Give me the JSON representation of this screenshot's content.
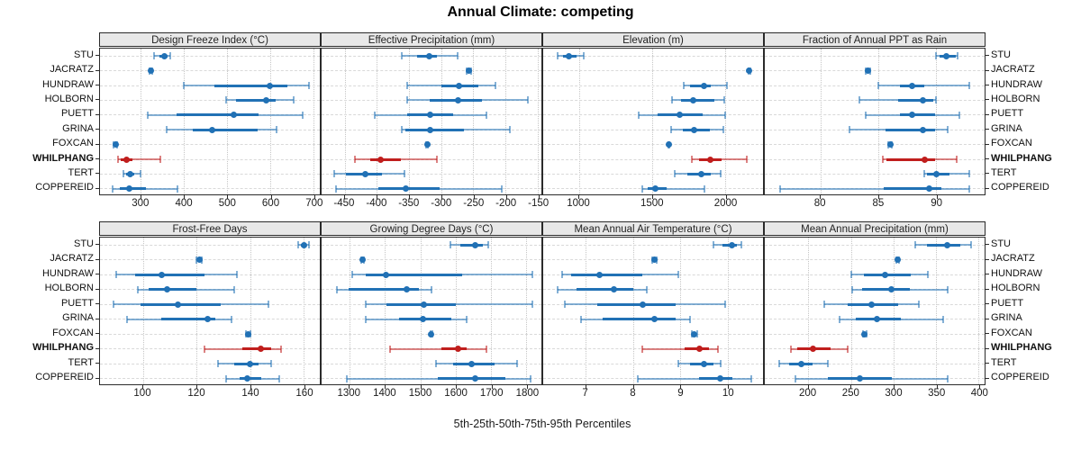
{
  "title": "Annual Climate: competing",
  "footer_xlabel": "5th-25th-50th-75th-95th Percentiles",
  "stations": [
    "STU",
    "JACRATZ",
    "HUNDRAW",
    "HOLBORN",
    "PUETT",
    "GRINA",
    "FOXCAN",
    "WHILPHANG",
    "TERT",
    "COPPEREID"
  ],
  "highlight_station": "WHILPHANG",
  "colors": {
    "blue": "#2171b5",
    "red": "#c01e1d",
    "grid": "#c6c6c6",
    "strip_bg": "#e8e8e8",
    "border": "#2b2b2b",
    "text": "#111111"
  },
  "chart_data": {
    "type": "scatter",
    "subtype": "5th-25th-50th-75th-95th percentile interval dotplot (trellis, 2 rows x 4 cols)",
    "title": "Annual Climate: competing",
    "xlabel": "5th-25th-50th-75th-95th Percentiles",
    "percentiles": [
      5,
      25,
      50,
      75,
      95
    ],
    "layout": {
      "rows": 2,
      "cols": 4,
      "legend": "none",
      "grid": "dotted vertical at ticks, dashed horizontal per station"
    },
    "panels": [
      {
        "title": "Design Freeze Index (°C)",
        "row": 0,
        "col": 0,
        "xlim": [
          205,
          715
        ],
        "ticks": [
          300,
          400,
          500,
          600,
          700
        ],
        "values": {
          "STU": [
            330,
            342,
            355,
            362,
            368
          ],
          "JACRATZ": [
            319,
            321,
            323,
            325,
            327
          ],
          "HUNDRAW": [
            400,
            470,
            600,
            640,
            690
          ],
          "HOLBORN": [
            497,
            520,
            590,
            612,
            655
          ],
          "PUETT": [
            315,
            382,
            516,
            573,
            676
          ],
          "GRINA": [
            359,
            420,
            466,
            570,
            614
          ],
          "FOXCAN": [
            237,
            239,
            241,
            243,
            245
          ],
          "WHILPHANG": [
            246,
            254,
            267,
            280,
            345
          ],
          "TERT": [
            260,
            266,
            275,
            285,
            299
          ],
          "COPPEREID": [
            234,
            250,
            273,
            312,
            385
          ]
        }
      },
      {
        "title": "Effective Precipitation (mm)",
        "row": 0,
        "col": 1,
        "xlim": [
          -486,
          -144
        ],
        "ticks": [
          -450,
          -400,
          -350,
          -300,
          -250,
          -200,
          -150
        ],
        "values": {
          "STU": [
            -361,
            -337,
            -318,
            -306,
            -274
          ],
          "JACRATZ": [
            -261,
            -259,
            -257,
            -255,
            -253
          ],
          "HUNDRAW": [
            -353,
            -300,
            -272,
            -242,
            -215
          ],
          "HOLBORN": [
            -353,
            -318,
            -273,
            -237,
            -165
          ],
          "PUETT": [
            -404,
            -353,
            -317,
            -281,
            -230
          ],
          "GRINA": [
            -361,
            -355,
            -317,
            -264,
            -193
          ],
          "FOXCAN": [
            -324,
            -323,
            -322,
            -321,
            -320
          ],
          "WHILPHANG": [
            -434,
            -411,
            -394,
            -362,
            -307
          ],
          "TERT": [
            -466,
            -448,
            -418,
            -392,
            -357
          ],
          "COPPEREID": [
            -464,
            -397,
            -355,
            -302,
            -206
          ]
        }
      },
      {
        "title": "Elevation (m)",
        "row": 0,
        "col": 2,
        "xlim": [
          755,
          2260
        ],
        "ticks": [
          1000,
          1500,
          2000
        ],
        "values": {
          "STU": [
            852,
            893,
            933,
            984,
            1030
          ],
          "JACRATZ": [
            2160,
            2163,
            2166,
            2169,
            2172
          ],
          "HUNDRAW": [
            1719,
            1763,
            1854,
            1905,
            2012
          ],
          "HOLBORN": [
            1638,
            1700,
            1779,
            1930,
            1996
          ],
          "PUETT": [
            1409,
            1540,
            1692,
            1844,
            2002
          ],
          "GRINA": [
            1632,
            1712,
            1789,
            1895,
            1986
          ],
          "FOXCAN": [
            1612,
            1614,
            1616,
            1618,
            1620
          ],
          "WHILPHANG": [
            1773,
            1824,
            1901,
            1976,
            2148
          ],
          "TERT": [
            1658,
            1743,
            1840,
            1905,
            1971
          ],
          "COPPEREID": [
            1435,
            1470,
            1520,
            1601,
            1858
          ]
        }
      },
      {
        "title": "Fraction of Annual PPT as Rain",
        "row": 0,
        "col": 3,
        "xlim": [
          75.2,
          94.2
        ],
        "ticks": [
          80,
          85,
          90
        ],
        "values": {
          "STU": [
            90.0,
            90.3,
            90.9,
            91.7,
            91.9
          ],
          "JACRATZ": [
            83.9,
            84.0,
            84.1,
            84.2,
            84.3
          ],
          "HUNDRAW": [
            85.0,
            86.9,
            87.9,
            89.0,
            92.9
          ],
          "HOLBORN": [
            83.4,
            86.7,
            88.9,
            89.8,
            90.0
          ],
          "PUETT": [
            83.9,
            86.9,
            87.9,
            89.9,
            92.0
          ],
          "GRINA": [
            82.5,
            85.6,
            88.9,
            89.9,
            91.0
          ],
          "FOXCAN": [
            85.9,
            86.0,
            86.05,
            86.1,
            86.2
          ],
          "WHILPHANG": [
            85.4,
            85.7,
            89.0,
            89.9,
            91.8
          ],
          "TERT": [
            89.0,
            89.2,
            90.0,
            91.2,
            92.9
          ],
          "COPPEREID": [
            76.5,
            85.5,
            89.4,
            90.5,
            92.9
          ]
        }
      },
      {
        "title": "Frost-Free Days",
        "row": 1,
        "col": 0,
        "xlim": [
          84,
          166
        ],
        "ticks": [
          100,
          120,
          140,
          160
        ],
        "values": {
          "STU": [
            158,
            159,
            160,
            161,
            162
          ],
          "JACRATZ": [
            120,
            120.5,
            121,
            121.5,
            122
          ],
          "HUNDRAW": [
            90,
            97,
            107,
            123,
            135
          ],
          "HOLBORN": [
            98,
            102,
            109,
            120,
            134
          ],
          "PUETT": [
            89,
            99,
            113,
            129,
            147
          ],
          "GRINA": [
            94,
            107,
            124,
            127,
            133
          ],
          "FOXCAN": [
            138.5,
            139,
            139.2,
            139.5,
            140
          ],
          "WHILPHANG": [
            123,
            137,
            144,
            148,
            151.5
          ],
          "TERT": [
            128,
            134,
            140,
            143,
            148
          ],
          "COPPEREID": [
            131,
            136,
            139,
            144,
            151
          ]
        }
      },
      {
        "title": "Growing Degree Days (°C)",
        "row": 1,
        "col": 1,
        "xlim": [
          1221,
          1842
        ],
        "ticks": [
          1300,
          1400,
          1500,
          1600,
          1700,
          1800
        ],
        "values": {
          "STU": [
            1584,
            1613,
            1654,
            1676,
            1691
          ],
          "JACRATZ": [
            1333,
            1335,
            1337,
            1339,
            1341
          ],
          "HUNDRAW": [
            1307,
            1346,
            1402,
            1619,
            1816
          ],
          "HOLBORN": [
            1263,
            1298,
            1462,
            1496,
            1531
          ],
          "PUETT": [
            1345,
            1403,
            1511,
            1601,
            1817
          ],
          "GRINA": [
            1345,
            1441,
            1508,
            1588,
            1630
          ],
          "FOXCAN": [
            1529,
            1530,
            1531,
            1532,
            1533
          ],
          "WHILPHANG": [
            1414,
            1559,
            1607,
            1630,
            1687
          ],
          "TERT": [
            1544,
            1592,
            1645,
            1710,
            1773
          ],
          "COPPEREID": [
            1292,
            1550,
            1654,
            1739,
            1811
          ]
        }
      },
      {
        "title": "Mean Annual Air Temperature (°C)",
        "row": 1,
        "col": 2,
        "xlim": [
          6.1,
          10.75
        ],
        "ticks": [
          7,
          8,
          9,
          10
        ],
        "values": {
          "STU": [
            9.7,
            9.9,
            10.1,
            10.2,
            10.3
          ],
          "JACRATZ": [
            8.4,
            8.43,
            8.45,
            8.47,
            8.5
          ],
          "HUNDRAW": [
            6.5,
            6.7,
            7.3,
            8.2,
            8.95
          ],
          "HOLBORN": [
            6.4,
            6.8,
            7.6,
            8.0,
            8.3
          ],
          "PUETT": [
            6.55,
            7.25,
            8.2,
            8.9,
            9.95
          ],
          "GRINA": [
            6.9,
            7.35,
            8.45,
            8.9,
            9.2
          ],
          "FOXCAN": [
            9.25,
            9.27,
            9.3,
            9.32,
            9.35
          ],
          "WHILPHANG": [
            8.2,
            9.1,
            9.4,
            9.6,
            9.8
          ],
          "TERT": [
            8.95,
            9.2,
            9.5,
            9.7,
            9.85
          ],
          "COPPEREID": [
            8.1,
            9.4,
            9.85,
            10.1,
            10.5
          ]
        }
      },
      {
        "title": "Mean Annual Precipitation (mm)",
        "row": 1,
        "col": 3,
        "xlim": [
          149,
          407
        ],
        "ticks": [
          200,
          250,
          300,
          350,
          400
        ],
        "values": {
          "STU": [
            326,
            339,
            363,
            378,
            391
          ],
          "JACRATZ": [
            303,
            304,
            305,
            306,
            307
          ],
          "HUNDRAW": [
            251,
            265,
            290,
            320,
            340
          ],
          "HOLBORN": [
            252,
            263,
            298,
            319,
            364
          ],
          "PUETT": [
            219,
            246,
            274,
            306,
            330
          ],
          "GRINA": [
            237,
            256,
            281,
            309,
            358
          ],
          "FOXCAN": [
            264,
            265,
            266,
            267,
            268
          ],
          "WHILPHANG": [
            180,
            187,
            206,
            226,
            246
          ],
          "TERT": [
            166,
            178,
            192,
            205,
            223
          ],
          "COPPEREID": [
            185,
            223,
            261,
            298,
            364
          ]
        }
      }
    ]
  }
}
